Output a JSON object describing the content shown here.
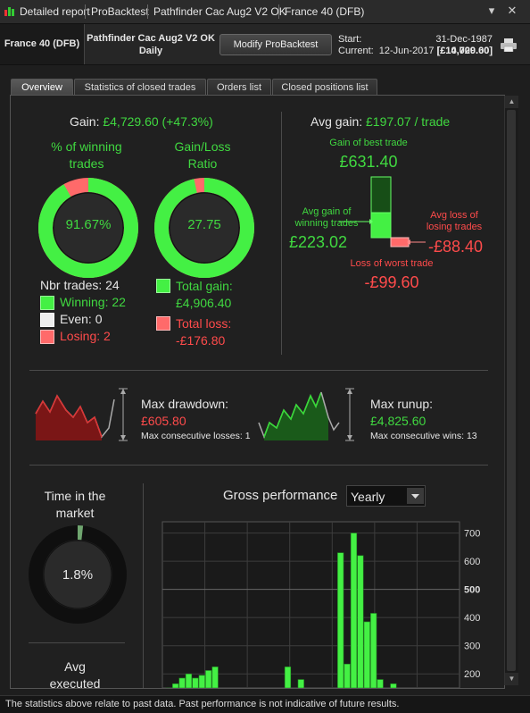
{
  "titlebar": {
    "items": [
      "Detailed report",
      "ProBacktest",
      "Pathfinder Cac Aug2 V2 OK",
      "France 40 (DFB)"
    ],
    "minimize_icon": "minimize-icon",
    "close_icon": "close-icon"
  },
  "header": {
    "instrument": "France 40 (DFB)",
    "strategy": "Pathfinder Cac Aug2 V2 OK",
    "timeframe": "Daily",
    "modify_button": "Modify ProBacktest",
    "start_label": "Start:",
    "start_date": "31-Dec-1987",
    "start_value": "[£10,000.00]",
    "current_label": "Current:",
    "current_date": "12-Jun-2017",
    "current_value": "[£14,729.60]"
  },
  "tabs": [
    {
      "label": "Overview"
    },
    {
      "label": "Statistics of closed trades"
    },
    {
      "label": "Orders list"
    },
    {
      "label": "Closed positions list"
    }
  ],
  "overview": {
    "gain_label": "Gain:",
    "gain_value": "£4,729.60 (+47.3%)",
    "winning_title_1": "% of winning",
    "winning_title_2": "trades",
    "winning_pct": "91.67%",
    "winning_fraction": 0.9167,
    "ratio_title_1": "Gain/Loss",
    "ratio_title_2": "Ratio",
    "ratio_value": "27.75",
    "ratio_fraction": 0.9652,
    "nbr_trades": "Nbr trades: 24",
    "winning": "Winning: 22",
    "even": "Even: 0",
    "losing": "Losing: 2",
    "total_gain_label": "Total gain:",
    "total_gain_value": "£4,906.40",
    "total_loss_label": "Total loss:",
    "total_loss_value": "-£176.80",
    "avg_gain_label": "Avg gain:",
    "avg_gain_value": "£197.07 / trade",
    "best_trade_label": "Gain of best trade",
    "best_trade_value": "£631.40",
    "avg_win_label_1": "Avg gain of",
    "avg_win_label_2": "winning trades",
    "avg_win_value": "£223.02",
    "avg_loss_label_1": "Avg loss of",
    "avg_loss_label_2": "losing trades",
    "avg_loss_value": "-£88.40",
    "worst_trade_label": "Loss of worst trade",
    "worst_trade_value": "-£99.60",
    "drawdown_label": "Max drawdown:",
    "drawdown_value": "£605.80",
    "consec_losses": "Max consecutive losses: 1",
    "runup_label": "Max runup:",
    "runup_value": "£4,825.60",
    "consec_wins": "Max consecutive wins: 13",
    "time_market_1": "Time in the",
    "time_market_2": "market",
    "time_market_value": "1.8%",
    "time_market_fraction": 0.018,
    "avg_executed_1": "Avg",
    "avg_executed_2": "executed",
    "gross_perf_label": "Gross performance",
    "gross_perf_select": "Yearly"
  },
  "colors": {
    "green": "#40d840",
    "red": "#ff4b4b",
    "dark_green": "#1f6e1f"
  },
  "chart_data": {
    "type": "bar",
    "title": "Gross performance",
    "yticks": [
      200,
      300,
      400,
      500,
      600,
      700
    ],
    "ylim": [
      150,
      740
    ],
    "values": [
      0,
      0,
      0,
      0,
      0,
      0,
      0,
      0,
      0,
      0,
      0,
      0,
      0,
      0,
      0,
      0,
      0,
      0,
      0,
      0,
      0,
      0,
      0,
      0,
      0,
      0,
      0,
      0,
      0,
      0,
      0,
      0,
      0,
      0,
      0,
      0,
      0,
      0,
      0,
      0,
      0,
      0,
      0,
      0,
      0
    ],
    "bars": [
      {
        "x": 0,
        "v": 150
      },
      {
        "x": 1,
        "v": 165
      },
      {
        "x": 2,
        "v": 185
      },
      {
        "x": 3,
        "v": 200
      },
      {
        "x": 4,
        "v": 185
      },
      {
        "x": 5,
        "v": 195
      },
      {
        "x": 6,
        "v": 212
      },
      {
        "x": 7,
        "v": 225
      },
      {
        "x": 18,
        "v": 225
      },
      {
        "x": 20,
        "v": 180
      },
      {
        "x": 26,
        "v": 630
      },
      {
        "x": 27,
        "v": 235
      },
      {
        "x": 28,
        "v": 700
      },
      {
        "x": 29,
        "v": 620
      },
      {
        "x": 30,
        "v": 385
      },
      {
        "x": 31,
        "v": 415
      },
      {
        "x": 32,
        "v": 180
      },
      {
        "x": 34,
        "v": 165
      }
    ]
  },
  "footer": "The statistics above relate to past data. Past performance is not indicative of future results."
}
